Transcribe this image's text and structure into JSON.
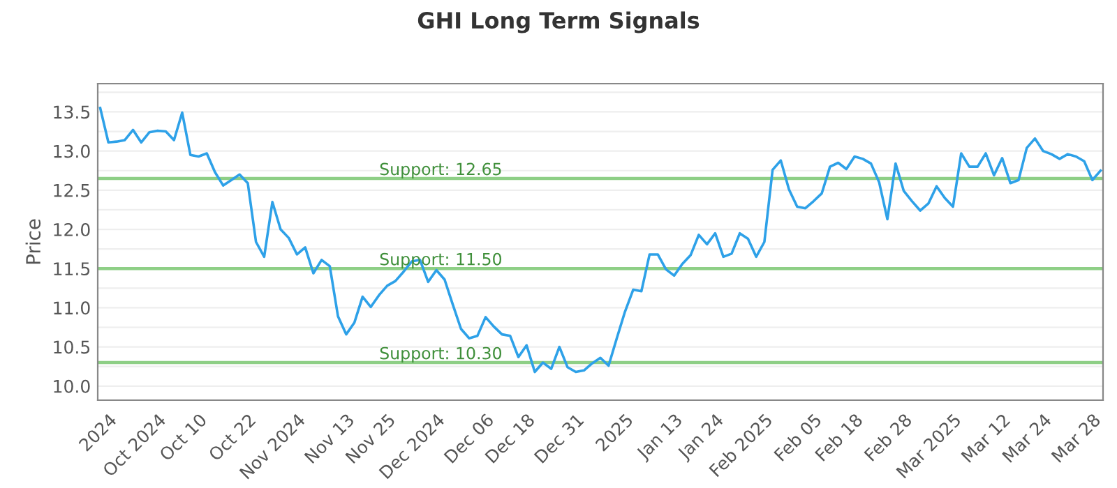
{
  "chart_data": {
    "type": "line",
    "title": "GHI Long Term Signals",
    "ylabel": "Price",
    "categories": [
      null,
      "2024",
      null,
      null,
      null,
      null,
      null,
      "Oct 2024",
      null,
      null,
      null,
      null,
      "Oct 10",
      null,
      null,
      null,
      null,
      null,
      "Oct 22",
      null,
      null,
      null,
      null,
      null,
      "Nov 2024",
      null,
      null,
      null,
      null,
      null,
      "Nov 13",
      null,
      null,
      null,
      null,
      "Nov 25",
      null,
      null,
      null,
      null,
      null,
      "Dec 2024",
      null,
      null,
      null,
      null,
      null,
      "Dec 06",
      null,
      null,
      null,
      null,
      "Dec 18",
      null,
      null,
      null,
      null,
      null,
      "Dec 31",
      null,
      null,
      null,
      null,
      null,
      "2025",
      null,
      null,
      null,
      null,
      null,
      "Jan 13",
      null,
      null,
      null,
      null,
      "Jan 24",
      null,
      null,
      null,
      null,
      null,
      "Feb 2025",
      null,
      null,
      null,
      null,
      null,
      "Feb 05",
      null,
      null,
      null,
      null,
      "Feb 18",
      null,
      null,
      null,
      null,
      null,
      "Feb 28",
      null,
      null,
      null,
      null,
      null,
      "Mar 2025",
      null,
      null,
      null,
      null,
      null,
      "Mar 12",
      null,
      null,
      null,
      null,
      "Mar 24",
      null,
      null,
      null,
      null,
      null,
      "Mar 28",
      null
    ],
    "series": [
      {
        "color": "#2ea1e8",
        "values": [
          13.55,
          13.11,
          13.12,
          13.14,
          13.27,
          13.11,
          13.24,
          13.26,
          13.25,
          13.14,
          13.49,
          12.95,
          12.93,
          12.97,
          12.73,
          12.56,
          12.63,
          12.7,
          12.59,
          11.84,
          11.65,
          12.35,
          12.0,
          11.89,
          11.68,
          11.77,
          11.44,
          11.61,
          11.53,
          10.89,
          10.66,
          10.81,
          11.14,
          11.01,
          11.16,
          11.28,
          11.34,
          11.46,
          11.59,
          11.61,
          11.33,
          11.48,
          11.36,
          11.04,
          10.73,
          10.61,
          10.64,
          10.88,
          10.76,
          10.66,
          10.64,
          10.37,
          10.52,
          10.18,
          10.3,
          10.22,
          10.5,
          10.24,
          10.18,
          10.2,
          10.29,
          10.36,
          10.26,
          10.61,
          10.95,
          11.23,
          11.21,
          11.68,
          11.68,
          11.49,
          11.41,
          11.56,
          11.67,
          11.93,
          11.81,
          11.95,
          11.65,
          11.69,
          11.95,
          11.88,
          11.65,
          11.84,
          12.76,
          12.88,
          12.51,
          12.29,
          12.27,
          12.36,
          12.46,
          12.8,
          12.85,
          12.77,
          12.93,
          12.9,
          12.84,
          12.6,
          12.13,
          12.84,
          12.49,
          12.36,
          12.24,
          12.33,
          12.55,
          12.4,
          12.29,
          12.97,
          12.8,
          12.8,
          12.97,
          12.69,
          12.91,
          12.59,
          12.63,
          13.04,
          13.16,
          13.0,
          12.96,
          12.9,
          12.96,
          12.93,
          12.87,
          12.63,
          12.75
        ]
      }
    ],
    "ylim": [
      9.82,
      13.86
    ],
    "yticks": [
      {
        "value": 10.0,
        "label": "10.0"
      },
      {
        "value": 10.25,
        "label": null
      },
      {
        "value": 10.5,
        "label": "10.5"
      },
      {
        "value": 10.75,
        "label": null
      },
      {
        "value": 11.0,
        "label": "11.0"
      },
      {
        "value": 11.25,
        "label": null
      },
      {
        "value": 11.5,
        "label": "11.5"
      },
      {
        "value": 11.75,
        "label": null
      },
      {
        "value": 12.0,
        "label": "12.0"
      },
      {
        "value": 12.25,
        "label": null
      },
      {
        "value": 12.5,
        "label": "12.5"
      },
      {
        "value": 12.75,
        "label": null
      },
      {
        "value": 13.0,
        "label": "13.0"
      },
      {
        "value": 13.25,
        "label": null
      },
      {
        "value": 13.5,
        "label": "13.5"
      },
      {
        "value": 13.75,
        "label": null
      }
    ],
    "ref_lines": [
      {
        "axis": "y",
        "value": 12.65,
        "label": "Support: 12.65",
        "color": "#8ecf86"
      },
      {
        "axis": "y",
        "value": 11.5,
        "label": "Support: 11.50",
        "color": "#8ecf86"
      },
      {
        "axis": "y",
        "value": 10.3,
        "label": "Support: 10.30",
        "color": "#8ecf86"
      }
    ],
    "grid": "y",
    "marker": "none",
    "line_style": "solid"
  }
}
